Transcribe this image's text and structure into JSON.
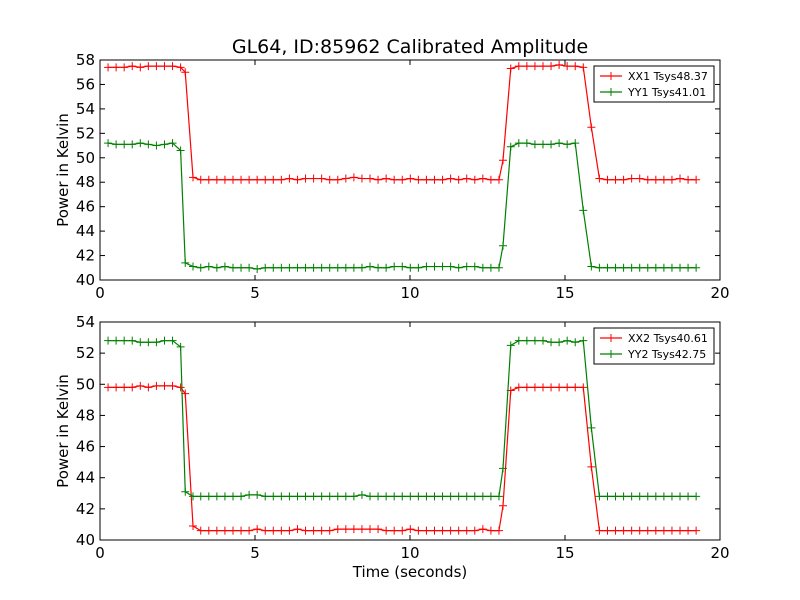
{
  "figure": {
    "title": "GL64, ID:85962 Calibrated Amplitude",
    "xlabel": "Time (seconds)"
  },
  "chart_data": [
    {
      "type": "line",
      "title": "GL64, ID:85962 Calibrated Amplitude",
      "xlabel": "",
      "ylabel": "Power in Kelvin",
      "xlim": [
        0,
        20
      ],
      "ylim": [
        40,
        58
      ],
      "xticks": [
        0,
        5,
        10,
        15,
        20
      ],
      "yticks": [
        40,
        42,
        44,
        46,
        48,
        50,
        52,
        54,
        56,
        58
      ],
      "legend_position": "top-right",
      "grid": false,
      "x": [
        0.26,
        0.52,
        0.78,
        1.04,
        1.3,
        1.56,
        1.82,
        2.08,
        2.34,
        2.6,
        2.75,
        3.0,
        3.25,
        3.51,
        3.77,
        4.03,
        4.29,
        4.55,
        4.81,
        5.07,
        5.33,
        5.59,
        5.85,
        6.11,
        6.37,
        6.63,
        6.89,
        7.15,
        7.41,
        7.67,
        7.93,
        8.19,
        8.45,
        8.71,
        8.97,
        9.23,
        9.49,
        9.75,
        10.01,
        10.27,
        10.53,
        10.79,
        11.05,
        11.31,
        11.57,
        11.83,
        12.09,
        12.35,
        12.61,
        12.87,
        13.0,
        13.25,
        13.51,
        13.77,
        14.03,
        14.29,
        14.55,
        14.81,
        15.07,
        15.33,
        15.59,
        15.85,
        16.11,
        16.37,
        16.63,
        16.89,
        17.15,
        17.41,
        17.67,
        17.93,
        18.19,
        18.45,
        18.71,
        18.97,
        19.23
      ],
      "series": [
        {
          "name": "XX1 Tsys48.37",
          "color": "#ff0000",
          "values": [
            57.4,
            57.4,
            57.4,
            57.5,
            57.4,
            57.5,
            57.5,
            57.5,
            57.5,
            57.4,
            57.0,
            48.4,
            48.2,
            48.2,
            48.2,
            48.2,
            48.2,
            48.2,
            48.2,
            48.2,
            48.2,
            48.2,
            48.2,
            48.3,
            48.2,
            48.3,
            48.3,
            48.3,
            48.2,
            48.2,
            48.3,
            48.4,
            48.3,
            48.3,
            48.2,
            48.3,
            48.2,
            48.2,
            48.3,
            48.2,
            48.2,
            48.2,
            48.2,
            48.3,
            48.2,
            48.3,
            48.2,
            48.3,
            48.2,
            48.2,
            49.8,
            57.3,
            57.5,
            57.5,
            57.5,
            57.5,
            57.5,
            57.6,
            57.5,
            57.5,
            57.4,
            52.5,
            48.3,
            48.2,
            48.2,
            48.2,
            48.3,
            48.3,
            48.2,
            48.2,
            48.2,
            48.2,
            48.3,
            48.2,
            48.2
          ]
        },
        {
          "name": "YY1 Tsys41.01",
          "color": "#008000",
          "values": [
            51.2,
            51.1,
            51.1,
            51.1,
            51.2,
            51.1,
            51.0,
            51.1,
            51.2,
            50.6,
            41.4,
            41.1,
            41.0,
            41.1,
            41.0,
            41.1,
            41.0,
            41.0,
            41.0,
            40.9,
            41.0,
            41.0,
            41.0,
            41.0,
            41.0,
            41.0,
            41.0,
            41.0,
            41.0,
            41.0,
            41.0,
            41.0,
            41.0,
            41.1,
            41.0,
            41.0,
            41.1,
            41.1,
            41.0,
            41.0,
            41.1,
            41.1,
            41.1,
            41.1,
            41.0,
            41.1,
            41.1,
            41.0,
            41.0,
            41.0,
            42.8,
            50.9,
            51.2,
            51.2,
            51.1,
            51.1,
            51.1,
            51.2,
            51.1,
            51.2,
            45.7,
            41.1,
            41.0,
            41.0,
            41.0,
            41.0,
            41.0,
            41.0,
            41.0,
            41.0,
            41.0,
            41.0,
            41.0,
            41.0,
            41.0
          ]
        }
      ]
    },
    {
      "type": "line",
      "title": "",
      "xlabel": "Time (seconds)",
      "ylabel": "Power in Kelvin",
      "xlim": [
        0,
        20
      ],
      "ylim": [
        40,
        54
      ],
      "xticks": [
        0,
        5,
        10,
        15,
        20
      ],
      "yticks": [
        40,
        42,
        44,
        46,
        48,
        50,
        52,
        54
      ],
      "legend_position": "top-right",
      "grid": false,
      "x": [
        0.26,
        0.52,
        0.78,
        1.04,
        1.3,
        1.56,
        1.82,
        2.08,
        2.34,
        2.6,
        2.75,
        3.0,
        3.25,
        3.51,
        3.77,
        4.03,
        4.29,
        4.55,
        4.81,
        5.07,
        5.33,
        5.59,
        5.85,
        6.11,
        6.37,
        6.63,
        6.89,
        7.15,
        7.41,
        7.67,
        7.93,
        8.19,
        8.45,
        8.71,
        8.97,
        9.23,
        9.49,
        9.75,
        10.01,
        10.27,
        10.53,
        10.79,
        11.05,
        11.31,
        11.57,
        11.83,
        12.09,
        12.35,
        12.61,
        12.87,
        13.0,
        13.25,
        13.51,
        13.77,
        14.03,
        14.29,
        14.55,
        14.81,
        15.07,
        15.33,
        15.59,
        15.85,
        16.11,
        16.37,
        16.63,
        16.89,
        17.15,
        17.41,
        17.67,
        17.93,
        18.19,
        18.45,
        18.71,
        18.97,
        19.23
      ],
      "series": [
        {
          "name": "XX2 Tsys40.61",
          "color": "#ff0000",
          "values": [
            49.8,
            49.8,
            49.8,
            49.8,
            49.9,
            49.8,
            49.9,
            49.9,
            49.9,
            49.8,
            49.4,
            40.9,
            40.6,
            40.6,
            40.6,
            40.6,
            40.6,
            40.6,
            40.6,
            40.7,
            40.6,
            40.6,
            40.6,
            40.6,
            40.7,
            40.6,
            40.6,
            40.6,
            40.6,
            40.7,
            40.7,
            40.7,
            40.7,
            40.7,
            40.7,
            40.6,
            40.6,
            40.6,
            40.7,
            40.6,
            40.6,
            40.6,
            40.6,
            40.6,
            40.6,
            40.6,
            40.6,
            40.7,
            40.6,
            40.6,
            42.2,
            49.6,
            49.8,
            49.8,
            49.8,
            49.8,
            49.8,
            49.8,
            49.8,
            49.8,
            49.8,
            44.7,
            40.6,
            40.6,
            40.6,
            40.6,
            40.6,
            40.6,
            40.6,
            40.6,
            40.6,
            40.6,
            40.6,
            40.6,
            40.6
          ]
        },
        {
          "name": "YY2 Tsys42.75",
          "color": "#008000",
          "values": [
            52.8,
            52.8,
            52.8,
            52.8,
            52.7,
            52.7,
            52.7,
            52.8,
            52.8,
            52.4,
            43.1,
            42.8,
            42.8,
            42.8,
            42.8,
            42.8,
            42.8,
            42.8,
            42.9,
            42.9,
            42.8,
            42.8,
            42.8,
            42.8,
            42.8,
            42.8,
            42.8,
            42.8,
            42.8,
            42.8,
            42.8,
            42.8,
            42.9,
            42.8,
            42.8,
            42.8,
            42.8,
            42.8,
            42.8,
            42.8,
            42.8,
            42.8,
            42.8,
            42.8,
            42.8,
            42.8,
            42.8,
            42.8,
            42.8,
            42.8,
            44.6,
            52.5,
            52.8,
            52.8,
            52.8,
            52.8,
            52.7,
            52.7,
            52.8,
            52.7,
            52.8,
            47.2,
            42.8,
            42.8,
            42.8,
            42.8,
            42.8,
            42.8,
            42.8,
            42.8,
            42.8,
            42.8,
            42.8,
            42.8,
            42.8
          ]
        }
      ]
    }
  ]
}
